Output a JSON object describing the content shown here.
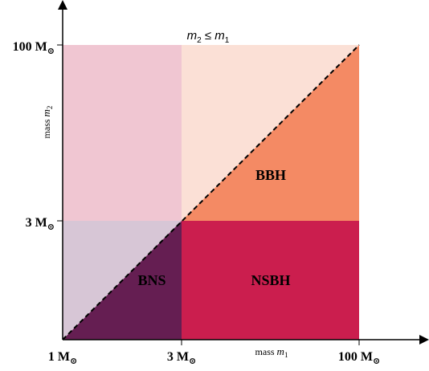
{
  "diagram": {
    "top_note": {
      "m2": "m",
      "sub2": "2",
      "rel": " ≤ ",
      "m1": "m",
      "sub1": "1"
    },
    "x_axis": {
      "label_prefix": "mass ",
      "label_var": "m",
      "label_sub": "1",
      "ticks": [
        {
          "text": "1 M",
          "sub": "⊙"
        },
        {
          "text": "3 M",
          "sub": "⊙"
        },
        {
          "text": "100 M",
          "sub": "⊙"
        }
      ]
    },
    "y_axis": {
      "label_prefix": "mass ",
      "label_var": "m",
      "label_sub": "2",
      "ticks": [
        {
          "text": "3 M",
          "sub": "⊙"
        },
        {
          "text": "100 M",
          "sub": "⊙"
        }
      ]
    },
    "regions": {
      "bns": "BNS",
      "nsbh": "NSBH",
      "bbh": "BBH"
    },
    "colors": {
      "upper_left": "#f0c6d2",
      "upper_right_light": "#fbe0d6",
      "upper_right_dark": "#f48a64",
      "lower_left_light": "#d7c6d6",
      "lower_left_dark": "#651e52",
      "lower_right": "#cb1e4e",
      "axis": "#000000"
    }
  }
}
